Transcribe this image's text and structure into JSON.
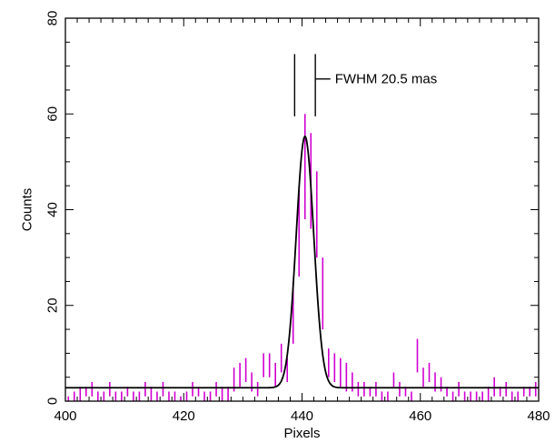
{
  "chart_data": {
    "type": "line",
    "xlabel": "Pixels",
    "ylabel": "Counts",
    "xlim": [
      400,
      480
    ],
    "ylim": [
      0,
      80
    ],
    "xticks": [
      400,
      420,
      440,
      460,
      480
    ],
    "yticks": [
      0,
      20,
      40,
      60,
      80
    ],
    "grid": false,
    "colors": {
      "data": "#d000d0",
      "fit": "#000000",
      "axis": "#000000"
    },
    "series": [
      {
        "style": "vertical-bars",
        "x": [
          400.5,
          401.5,
          402.5,
          403.5,
          404.5,
          405.5,
          406.5,
          407.5,
          408.5,
          409.5,
          410.5,
          411.5,
          412.5,
          413.5,
          414.5,
          415.5,
          416.5,
          417.5,
          418.5,
          419.5,
          420.5,
          421.5,
          422.5,
          423.5,
          424.5,
          425.5,
          426.5,
          427.5,
          428.5,
          429.5,
          430.5,
          431.5,
          432.5,
          433.5,
          434.5,
          435.5,
          436.5,
          437.5,
          438.5,
          439.5,
          440.5,
          441.5,
          442.5,
          443.5,
          444.5,
          445.5,
          446.5,
          447.5,
          448.5,
          449.5,
          450.5,
          451.5,
          452.5,
          453.5,
          454.5,
          455.5,
          456.5,
          457.5,
          458.5,
          459.5,
          460.5,
          461.5,
          462.5,
          463.5,
          464.5,
          465.5,
          466.5,
          467.5,
          468.5,
          469.5,
          470.5,
          471.5,
          472.5,
          473.5,
          474.5,
          475.5,
          476.5,
          477.5,
          478.5,
          479.5
        ],
        "y": [
          1,
          2,
          3,
          3,
          4,
          2,
          2,
          4,
          2,
          2,
          3,
          2,
          2,
          4,
          3,
          2,
          4,
          2,
          2,
          1,
          2,
          4,
          3,
          2,
          2,
          4,
          3,
          3,
          7,
          8,
          9,
          6,
          4,
          10,
          10,
          8,
          12,
          9,
          25,
          45,
          60,
          56,
          48,
          30,
          11,
          10,
          9,
          8,
          6,
          4,
          4,
          3,
          4,
          2,
          2,
          6,
          4,
          3,
          2,
          13,
          7,
          8,
          6,
          5,
          3,
          2,
          4,
          2,
          2,
          2,
          2,
          3,
          5,
          3,
          4,
          2,
          2,
          3,
          3,
          4
        ],
        "y_low": [
          0,
          0,
          0,
          1,
          1,
          0,
          0,
          1,
          0,
          0,
          1,
          0,
          0,
          1,
          0,
          0,
          1,
          0,
          0,
          0,
          0,
          1,
          1,
          0,
          0,
          1,
          0,
          0,
          2,
          3,
          4,
          2,
          1,
          5,
          5,
          3,
          6,
          4,
          12,
          26,
          38,
          36,
          30,
          15,
          5,
          4,
          3,
          2,
          2,
          1,
          1,
          1,
          1,
          0,
          0,
          3,
          1,
          1,
          0,
          6,
          3,
          4,
          2,
          2,
          1,
          0,
          1,
          0,
          0,
          0,
          0,
          0,
          1,
          1,
          1,
          0,
          0,
          1,
          1,
          1
        ]
      },
      {
        "style": "gaussian-fit",
        "baseline": 2.8,
        "amplitude": 52.5,
        "center": 440.5,
        "fwhm": 3.5
      }
    ],
    "annotations": [
      {
        "text": "FWHM 20.5 mas",
        "marker_x": [
          438.75,
          442.25
        ],
        "marker_y": [
          59.5,
          72.5
        ],
        "leader_to_x": 444.8,
        "leader_y": 67.3
      }
    ]
  }
}
